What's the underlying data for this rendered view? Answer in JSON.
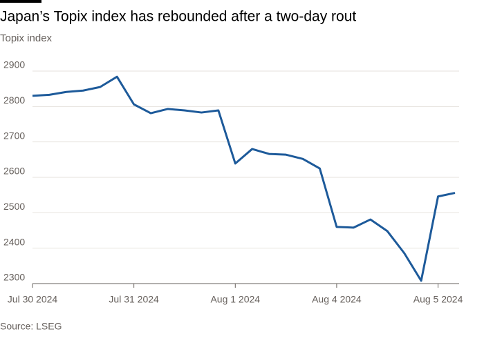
{
  "chart_data": {
    "type": "line",
    "title": "Japan’s Topix index has rebounded after a two-day rout",
    "subtitle": "Topix index",
    "source": "Source: LSEG",
    "categories": [
      "Jul 30 2024",
      null,
      null,
      null,
      null,
      null,
      "Jul 31 2024",
      null,
      null,
      null,
      null,
      null,
      "Aug 1 2024",
      null,
      null,
      null,
      null,
      null,
      "Aug 4 2024",
      null,
      null,
      null,
      null,
      null,
      "Aug 5 2024",
      null
    ],
    "series": [
      {
        "name": "Topix index",
        "color": "#1d5a9a",
        "values": [
          2830,
          2833,
          2841,
          2845,
          2855,
          2884,
          2806,
          2781,
          2793,
          2789,
          2783,
          2789,
          2639,
          2680,
          2666,
          2664,
          2652,
          2625,
          2460,
          2458,
          2481,
          2448,
          2386,
          2308,
          2546,
          2556
        ]
      }
    ],
    "ylim": [
      2300,
      2900
    ],
    "yticks": [
      2300,
      2400,
      2500,
      2600,
      2700,
      2800,
      2900
    ],
    "grid": true
  }
}
